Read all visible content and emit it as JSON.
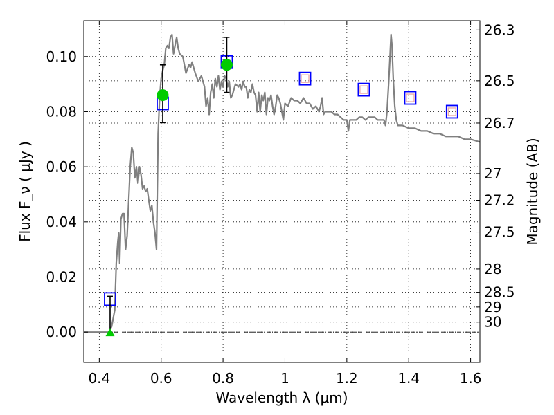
{
  "chart_data": {
    "type": "line",
    "title": "",
    "xlabel": "Wavelength  λ (μm)",
    "ylabel": "Flux  F_ν  ( μJy )",
    "y2label": "Magnitude (AB)",
    "xlim": [
      0.35,
      1.63
    ],
    "ylim": [
      -0.011,
      0.113
    ],
    "grid": true,
    "x_ticks": [
      0.4,
      0.6,
      0.8,
      1.0,
      1.2,
      1.4,
      1.6
    ],
    "x_tick_labels": [
      "0.4",
      "0.6",
      "0.8",
      "1",
      "1.2",
      "1.4",
      "1.6"
    ],
    "y_ticks": [
      0.0,
      0.02,
      0.04,
      0.06,
      0.08,
      0.1
    ],
    "y_tick_labels": [
      "0.00",
      "0.02",
      "0.04",
      "0.06",
      "0.08",
      "0.10"
    ],
    "y2_ticks": [
      {
        "label": "26.3",
        "mag": 26.3
      },
      {
        "label": "26.5",
        "mag": 26.5
      },
      {
        "label": "26.7",
        "mag": 26.7
      },
      {
        "label": "27",
        "mag": 27.0
      },
      {
        "label": "27.2",
        "mag": 27.2
      },
      {
        "label": "27.5",
        "mag": 27.5
      },
      {
        "label": "28",
        "mag": 28.0
      },
      {
        "label": "28.5",
        "mag": 28.5
      },
      {
        "label": "29",
        "mag": 29.0
      },
      {
        "label": "30",
        "mag": 30.0
      }
    ],
    "series": [
      {
        "kind": "template-spectrum",
        "color": "#808080",
        "points": [
          [
            0.35,
            0.0
          ],
          [
            0.43,
            0.0
          ],
          [
            0.44,
            0.002
          ],
          [
            0.45,
            0.008
          ],
          [
            0.455,
            0.025
          ],
          [
            0.46,
            0.033
          ],
          [
            0.463,
            0.036
          ],
          [
            0.466,
            0.025
          ],
          [
            0.47,
            0.041
          ],
          [
            0.475,
            0.043
          ],
          [
            0.48,
            0.043
          ],
          [
            0.485,
            0.03
          ],
          [
            0.49,
            0.035
          ],
          [
            0.5,
            0.06
          ],
          [
            0.505,
            0.067
          ],
          [
            0.51,
            0.065
          ],
          [
            0.515,
            0.056
          ],
          [
            0.52,
            0.06
          ],
          [
            0.525,
            0.054
          ],
          [
            0.53,
            0.06
          ],
          [
            0.535,
            0.057
          ],
          [
            0.54,
            0.052
          ],
          [
            0.545,
            0.053
          ],
          [
            0.55,
            0.051
          ],
          [
            0.555,
            0.052
          ],
          [
            0.56,
            0.048
          ],
          [
            0.565,
            0.044
          ],
          [
            0.57,
            0.046
          ],
          [
            0.575,
            0.04
          ],
          [
            0.58,
            0.036
          ],
          [
            0.585,
            0.03
          ],
          [
            0.59,
            0.072
          ],
          [
            0.595,
            0.085
          ],
          [
            0.6,
            0.092
          ],
          [
            0.605,
            0.095
          ],
          [
            0.61,
            0.097
          ],
          [
            0.615,
            0.103
          ],
          [
            0.62,
            0.104
          ],
          [
            0.625,
            0.103
          ],
          [
            0.63,
            0.107
          ],
          [
            0.635,
            0.108
          ],
          [
            0.64,
            0.101
          ],
          [
            0.645,
            0.104
          ],
          [
            0.65,
            0.107
          ],
          [
            0.655,
            0.103
          ],
          [
            0.66,
            0.101
          ],
          [
            0.67,
            0.1
          ],
          [
            0.68,
            0.094
          ],
          [
            0.69,
            0.097
          ],
          [
            0.695,
            0.096
          ],
          [
            0.7,
            0.098
          ],
          [
            0.705,
            0.096
          ],
          [
            0.71,
            0.094
          ],
          [
            0.72,
            0.091
          ],
          [
            0.73,
            0.093
          ],
          [
            0.74,
            0.089
          ],
          [
            0.745,
            0.082
          ],
          [
            0.75,
            0.085
          ],
          [
            0.755,
            0.079
          ],
          [
            0.76,
            0.087
          ],
          [
            0.765,
            0.09
          ],
          [
            0.77,
            0.085
          ],
          [
            0.775,
            0.092
          ],
          [
            0.78,
            0.089
          ],
          [
            0.785,
            0.093
          ],
          [
            0.79,
            0.088
          ],
          [
            0.795,
            0.091
          ],
          [
            0.8,
            0.089
          ],
          [
            0.805,
            0.093
          ],
          [
            0.81,
            0.092
          ],
          [
            0.815,
            0.089
          ],
          [
            0.82,
            0.091
          ],
          [
            0.825,
            0.085
          ],
          [
            0.83,
            0.086
          ],
          [
            0.835,
            0.088
          ],
          [
            0.84,
            0.09
          ],
          [
            0.85,
            0.089
          ],
          [
            0.855,
            0.09
          ],
          [
            0.86,
            0.088
          ],
          [
            0.865,
            0.091
          ],
          [
            0.87,
            0.089
          ],
          [
            0.875,
            0.089
          ],
          [
            0.88,
            0.085
          ],
          [
            0.885,
            0.088
          ],
          [
            0.89,
            0.087
          ],
          [
            0.895,
            0.09
          ],
          [
            0.9,
            0.087
          ],
          [
            0.905,
            0.086
          ],
          [
            0.91,
            0.08
          ],
          [
            0.915,
            0.087
          ],
          [
            0.92,
            0.08
          ],
          [
            0.925,
            0.086
          ],
          [
            0.93,
            0.084
          ],
          [
            0.935,
            0.087
          ],
          [
            0.94,
            0.079
          ],
          [
            0.945,
            0.085
          ],
          [
            0.95,
            0.084
          ],
          [
            0.955,
            0.086
          ],
          [
            0.96,
            0.082
          ],
          [
            0.965,
            0.079
          ],
          [
            0.97,
            0.082
          ],
          [
            0.975,
            0.086
          ],
          [
            0.98,
            0.085
          ],
          [
            0.985,
            0.083
          ],
          [
            0.99,
            0.08
          ],
          [
            0.995,
            0.077
          ],
          [
            1.0,
            0.083
          ],
          [
            1.01,
            0.082
          ],
          [
            1.02,
            0.085
          ],
          [
            1.03,
            0.084
          ],
          [
            1.04,
            0.084
          ],
          [
            1.05,
            0.083
          ],
          [
            1.06,
            0.085
          ],
          [
            1.07,
            0.083
          ],
          [
            1.08,
            0.083
          ],
          [
            1.09,
            0.081
          ],
          [
            1.1,
            0.082
          ],
          [
            1.11,
            0.08
          ],
          [
            1.115,
            0.082
          ],
          [
            1.12,
            0.085
          ],
          [
            1.125,
            0.079
          ],
          [
            1.13,
            0.08
          ],
          [
            1.14,
            0.08
          ],
          [
            1.15,
            0.08
          ],
          [
            1.16,
            0.079
          ],
          [
            1.17,
            0.079
          ],
          [
            1.18,
            0.078
          ],
          [
            1.19,
            0.077
          ],
          [
            1.2,
            0.077
          ],
          [
            1.205,
            0.073
          ],
          [
            1.21,
            0.077
          ],
          [
            1.22,
            0.077
          ],
          [
            1.23,
            0.077
          ],
          [
            1.24,
            0.078
          ],
          [
            1.25,
            0.078
          ],
          [
            1.26,
            0.077
          ],
          [
            1.27,
            0.078
          ],
          [
            1.28,
            0.078
          ],
          [
            1.29,
            0.078
          ],
          [
            1.3,
            0.077
          ],
          [
            1.31,
            0.077
          ],
          [
            1.32,
            0.077
          ],
          [
            1.325,
            0.075
          ],
          [
            1.33,
            0.08
          ],
          [
            1.335,
            0.09
          ],
          [
            1.34,
            0.101
          ],
          [
            1.343,
            0.108
          ],
          [
            1.346,
            0.104
          ],
          [
            1.35,
            0.092
          ],
          [
            1.355,
            0.082
          ],
          [
            1.36,
            0.077
          ],
          [
            1.365,
            0.075
          ],
          [
            1.37,
            0.075
          ],
          [
            1.38,
            0.075
          ],
          [
            1.4,
            0.074
          ],
          [
            1.42,
            0.074
          ],
          [
            1.44,
            0.073
          ],
          [
            1.46,
            0.073
          ],
          [
            1.48,
            0.072
          ],
          [
            1.5,
            0.072
          ],
          [
            1.52,
            0.071
          ],
          [
            1.54,
            0.071
          ],
          [
            1.56,
            0.071
          ],
          [
            1.58,
            0.07
          ],
          [
            1.6,
            0.07
          ],
          [
            1.63,
            0.069
          ]
        ]
      },
      {
        "kind": "model-photometry",
        "marker": "open-square",
        "color": "#0000ff",
        "points": [
          [
            0.435,
            0.012
          ],
          [
            0.605,
            0.083
          ],
          [
            0.812,
            0.098
          ],
          [
            1.065,
            0.092
          ],
          [
            1.255,
            0.088
          ],
          [
            1.405,
            0.085
          ],
          [
            1.54,
            0.08
          ]
        ]
      },
      {
        "kind": "observed-upper-limits",
        "marker": "small-open-square",
        "color": "#e8a0a0",
        "points": [
          [
            1.065,
            0.092
          ],
          [
            1.255,
            0.088
          ],
          [
            1.405,
            0.085
          ],
          [
            1.54,
            0.08
          ]
        ]
      },
      {
        "kind": "observed-detections",
        "marker": "filled-circle",
        "color": "#00cc00",
        "points": [
          {
            "x": 0.605,
            "y": 0.086,
            "yerr_low": 0.076,
            "yerr_high": 0.097
          },
          {
            "x": 0.812,
            "y": 0.097,
            "yerr_low": 0.087,
            "yerr_high": 0.107
          }
        ]
      },
      {
        "kind": "observed-nondetection",
        "marker": "filled-triangle",
        "color": "#00cc00",
        "points": [
          {
            "x": 0.435,
            "y": 0.0,
            "yerr_low": 0.0,
            "yerr_high": 0.013
          }
        ]
      }
    ]
  }
}
